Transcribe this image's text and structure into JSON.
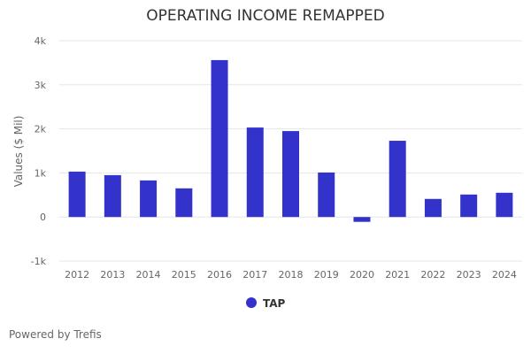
{
  "chart_data": {
    "type": "bar",
    "title": "OPERATING INCOME REMAPPED",
    "xlabel": "",
    "ylabel": "Values ($ Mil)",
    "categories": [
      "2012",
      "2013",
      "2014",
      "2015",
      "2016",
      "2017",
      "2018",
      "2019",
      "2020",
      "2021",
      "2022",
      "2023",
      "2024"
    ],
    "series": [
      {
        "name": "TAP",
        "values": [
          1030,
          950,
          830,
          650,
          3560,
          2030,
          1950,
          1010,
          -110,
          1730,
          410,
          510,
          550
        ]
      }
    ],
    "ylim": [
      -1000,
      4000
    ],
    "yticks": [
      -1000,
      0,
      1000,
      2000,
      3000,
      4000
    ],
    "ytick_labels": [
      "-1k",
      "0",
      "1k",
      "2k",
      "3k",
      "4k"
    ],
    "grid": true,
    "legend": "bottom",
    "color": "#3333cc"
  },
  "credit": "Powered by Trefis"
}
